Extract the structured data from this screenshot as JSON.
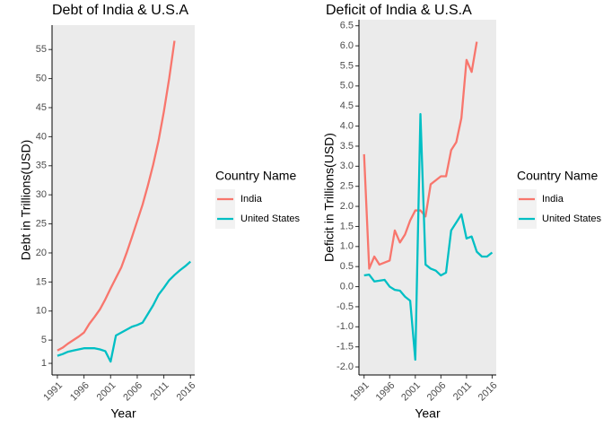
{
  "chart_data": [
    {
      "type": "line",
      "title": "Debt of India & U.S.A",
      "x_label": "Year",
      "y_label": "Debt in Trillions(USD)",
      "legend_title": "Country Name",
      "x": [
        1991,
        1992,
        1993,
        1994,
        1995,
        1996,
        1997,
        1998,
        1999,
        2000,
        2001,
        2002,
        2003,
        2004,
        2005,
        2006,
        2007,
        2008,
        2009,
        2010,
        2011,
        2012,
        2013,
        2014,
        2015,
        2016
      ],
      "series": [
        {
          "name": "India",
          "color": "#F8766D",
          "values": [
            3.2,
            3.7,
            4.4,
            5.0,
            5.6,
            6.3,
            7.8,
            9.0,
            10.3,
            12.0,
            13.9,
            15.7,
            17.5,
            20.0,
            22.7,
            25.5,
            28.3,
            31.6,
            35.2,
            39.3,
            44.3,
            50.0,
            56.5,
            null,
            null,
            null
          ]
        },
        {
          "name": "United States",
          "color": "#00BFC4",
          "values": [
            2.3,
            2.6,
            3.0,
            3.2,
            3.4,
            3.6,
            3.6,
            3.6,
            3.4,
            3.1,
            1.3,
            5.8,
            6.3,
            6.8,
            7.3,
            7.6,
            8.0,
            9.5,
            11.0,
            12.8,
            14.0,
            15.3,
            16.2,
            17.0,
            17.7,
            18.5
          ]
        }
      ],
      "xlim": [
        1990,
        2016.8
      ],
      "xticks": [
        1991,
        1996,
        2001,
        2006,
        2011,
        2016
      ],
      "ylim": [
        -1.0,
        59.2
      ],
      "yticks": [
        1,
        5,
        10,
        15,
        20,
        25,
        30,
        35,
        40,
        45,
        50,
        55
      ]
    },
    {
      "type": "line",
      "title": "Deficit of India & U.S.A",
      "x_label": "Year",
      "y_label": "Deficit in Trillions(USD)",
      "legend_title": "Country Name",
      "x": [
        1991,
        1992,
        1993,
        1994,
        1995,
        1996,
        1997,
        1998,
        1999,
        2000,
        2001,
        2002,
        2003,
        2004,
        2005,
        2006,
        2007,
        2008,
        2009,
        2010,
        2011,
        2012,
        2013,
        2014,
        2015,
        2016
      ],
      "series": [
        {
          "name": "India",
          "color": "#F8766D",
          "values": [
            3.3,
            0.45,
            0.75,
            0.55,
            0.6,
            0.65,
            1.4,
            1.1,
            1.3,
            1.65,
            1.9,
            1.9,
            1.75,
            2.55,
            2.65,
            2.75,
            2.75,
            3.4,
            3.6,
            4.2,
            5.65,
            5.35,
            6.1,
            null,
            null,
            null
          ]
        },
        {
          "name": "United States",
          "color": "#00BFC4",
          "values": [
            0.28,
            0.3,
            0.13,
            0.15,
            0.17,
            0.0,
            -0.08,
            -0.1,
            -0.25,
            -0.35,
            -1.82,
            4.3,
            0.55,
            0.45,
            0.4,
            0.28,
            0.35,
            1.4,
            1.6,
            1.8,
            1.2,
            1.25,
            0.87,
            0.75,
            0.75,
            0.85
          ]
        }
      ],
      "xlim": [
        1990,
        2016.8
      ],
      "xticks": [
        1991,
        1996,
        2001,
        2006,
        2011,
        2016
      ],
      "ylim": [
        -2.2,
        6.65
      ],
      "yticks": [
        6.5,
        {
          "value": 6.0,
          "label": "6.0"
        },
        5.5,
        {
          "value": 5.0,
          "label": "5.0"
        },
        4.5,
        {
          "value": 4.0,
          "label": "4.0"
        },
        3.5,
        {
          "value": 3.0,
          "label": "3.0"
        },
        2.5,
        {
          "value": 2.0,
          "label": "2.0"
        },
        1.5,
        {
          "value": 1.0,
          "label": "1.0"
        },
        0.5,
        {
          "value": 0.0,
          "label": "0.0"
        },
        -0.5,
        {
          "value": -1.0,
          "label": "-1.0"
        },
        -1.5,
        {
          "value": -2.0,
          "label": "-2.0"
        }
      ]
    }
  ]
}
